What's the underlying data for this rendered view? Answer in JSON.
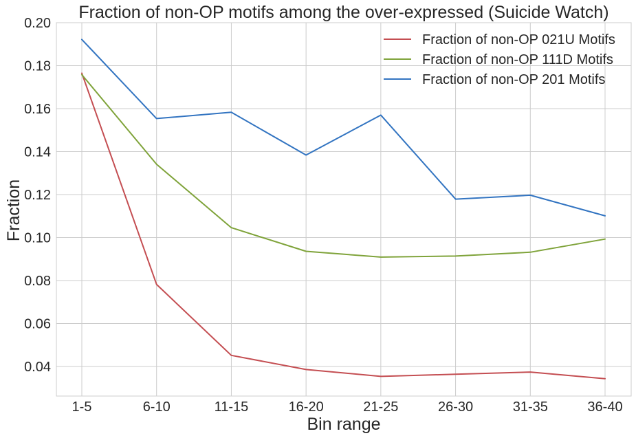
{
  "chart_data": {
    "type": "line",
    "title": "Fraction of non-OP motifs among the over-expressed (Suicide Watch)",
    "xlabel": "Bin range",
    "ylabel": "Fraction",
    "categories": [
      "1-5",
      "6-10",
      "11-15",
      "16-20",
      "21-25",
      "26-30",
      "31-35",
      "36-40"
    ],
    "ylim": [
      0.026,
      0.2
    ],
    "yticks": [
      0.04,
      0.06,
      0.08,
      0.1,
      0.12,
      0.14,
      0.16,
      0.18,
      0.2
    ],
    "ytick_labels": [
      "0.04",
      "0.06",
      "0.08",
      "0.10",
      "0.12",
      "0.14",
      "0.16",
      "0.18",
      "0.20"
    ],
    "grid": true,
    "legend_position": "top-right",
    "series": [
      {
        "name": "Fraction of non-OP 021U Motifs",
        "color": "#c44e52",
        "values": [
          0.1765,
          0.0782,
          0.0452,
          0.0386,
          0.0354,
          0.0364,
          0.0374,
          0.0343
        ]
      },
      {
        "name": "Fraction of non-OP 111D Motifs",
        "color": "#7fa33a",
        "values": [
          0.1758,
          0.1341,
          0.1046,
          0.0936,
          0.0909,
          0.0914,
          0.0932,
          0.0993
        ]
      },
      {
        "name": "Fraction of non-OP 201 Motifs",
        "color": "#3274c1",
        "values": [
          0.1922,
          0.1554,
          0.1583,
          0.1384,
          0.157,
          0.1179,
          0.1197,
          0.1101
        ]
      }
    ]
  }
}
